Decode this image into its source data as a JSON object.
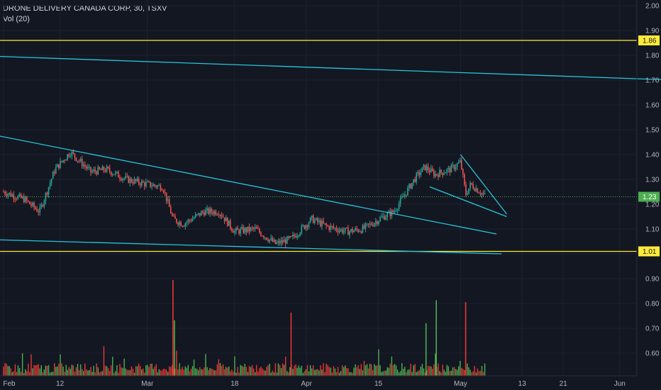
{
  "header": {
    "symbol_line": "DRONE DELIVERY CANADA CORP, 30, TSXV",
    "volume_line": "Vol (20)"
  },
  "colors": {
    "background": "#131722",
    "up": "#26a69a",
    "down": "#ef5350",
    "trendline": "#26c6da",
    "horizontal_level": "#ffeb3b",
    "current_price": "#4caf50",
    "vol_up": "#4caf50",
    "vol_down": "#e53935"
  },
  "chart_data": {
    "type": "candlestick",
    "y_axis_ticks": [
      "2.00",
      "1.90",
      "1.80",
      "1.70",
      "1.60",
      "1.50",
      "1.40",
      "1.30",
      "1.20",
      "1.10",
      "1.00",
      "0.90",
      "0.80",
      "0.70",
      "0.60"
    ],
    "ylim": [
      0.55,
      2.0
    ],
    "x_axis_ticks": [
      "Feb",
      "12",
      "Mar",
      "18",
      "Apr",
      "15",
      "May",
      "13",
      "21",
      "Jun"
    ],
    "price_badges": [
      {
        "value": 1.86,
        "label": "1.86",
        "kind": "horizontal_level"
      },
      {
        "value": 1.23,
        "label": "1.23",
        "kind": "current_price"
      },
      {
        "value": 1.01,
        "label": "1.01",
        "kind": "horizontal_level"
      }
    ],
    "horizontal_levels": [
      1.86,
      1.01
    ],
    "current_price": 1.23,
    "price_path": [
      {
        "date": "Feb 1",
        "close": 1.25
      },
      {
        "date": "Feb 5",
        "close": 1.22
      },
      {
        "date": "Feb 8",
        "close": 1.17
      },
      {
        "date": "Feb 11",
        "close": 1.34
      },
      {
        "date": "Feb 14",
        "close": 1.41
      },
      {
        "date": "Feb 18",
        "close": 1.33
      },
      {
        "date": "Feb 21",
        "close": 1.34
      },
      {
        "date": "Feb 25",
        "close": 1.3
      },
      {
        "date": "Mar 1",
        "close": 1.28
      },
      {
        "date": "Mar 4",
        "close": 1.27
      },
      {
        "date": "Mar 6",
        "close": 1.14
      },
      {
        "date": "Mar 8",
        "close": 1.12
      },
      {
        "date": "Mar 12",
        "close": 1.17
      },
      {
        "date": "Mar 15",
        "close": 1.17
      },
      {
        "date": "Mar 18",
        "close": 1.09
      },
      {
        "date": "Mar 22",
        "close": 1.1
      },
      {
        "date": "Mar 26",
        "close": 1.04
      },
      {
        "date": "Mar 29",
        "close": 1.06
      },
      {
        "date": "Apr 2",
        "close": 1.14
      },
      {
        "date": "Apr 5",
        "close": 1.11
      },
      {
        "date": "Apr 9",
        "close": 1.09
      },
      {
        "date": "Apr 12",
        "close": 1.1
      },
      {
        "date": "Apr 16",
        "close": 1.15
      },
      {
        "date": "Apr 18",
        "close": 1.17
      },
      {
        "date": "Apr 22",
        "close": 1.3
      },
      {
        "date": "Apr 24",
        "close": 1.35
      },
      {
        "date": "Apr 26",
        "close": 1.32
      },
      {
        "date": "Apr 29",
        "close": 1.34
      },
      {
        "date": "May 1",
        "close": 1.37
      },
      {
        "date": "May 2",
        "close": 1.24
      },
      {
        "date": "May 3",
        "close": 1.28
      },
      {
        "date": "May 6",
        "close": 1.23
      }
    ],
    "trendlines": [
      {
        "from": {
          "date": "Jan 25",
          "value": 1.8
        },
        "to": {
          "date": "Jun 12",
          "value": 1.7
        }
      },
      {
        "from": {
          "date": "Jan 25",
          "value": 1.5
        },
        "to": {
          "date": "May 8",
          "value": 1.08
        }
      },
      {
        "from": {
          "date": "Jan 25",
          "value": 1.06
        },
        "to": {
          "date": "May 9",
          "value": 1.0
        }
      },
      {
        "from": {
          "date": "Apr 25",
          "value": 1.27
        },
        "to": {
          "date": "May 10",
          "value": 1.15
        }
      },
      {
        "from": {
          "date": "May 1",
          "value": 1.4
        },
        "to": {
          "date": "May 10",
          "value": 1.16
        }
      }
    ],
    "volume_series": "Vol (20)",
    "volume_spikes": [
      {
        "date": "Mar 6",
        "relative": 1.0,
        "dir": "down"
      },
      {
        "date": "Mar 6",
        "relative": 0.58,
        "dir": "up"
      },
      {
        "date": "Mar 29",
        "relative": 0.66,
        "dir": "down"
      },
      {
        "date": "Apr 26",
        "relative": 0.79,
        "dir": "up"
      },
      {
        "date": "Apr 24",
        "relative": 0.55,
        "dir": "up"
      },
      {
        "date": "May 2",
        "relative": 0.77,
        "dir": "down"
      }
    ],
    "grid": true
  }
}
